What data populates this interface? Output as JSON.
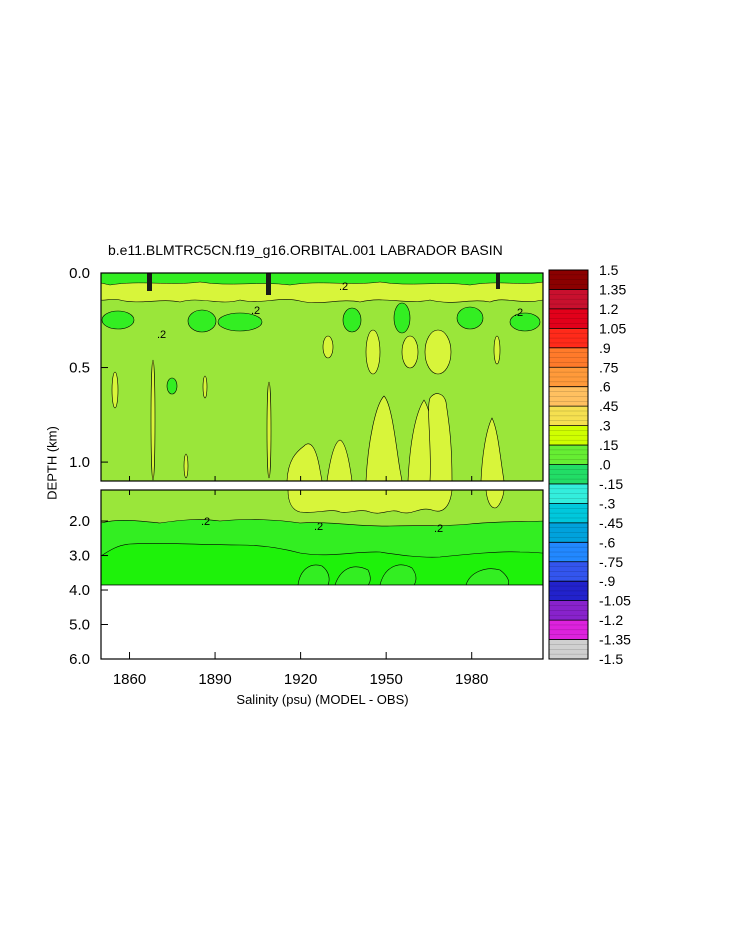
{
  "chart_data": {
    "type": "heatmap",
    "title": "b.e11.BLMTRC5CN.f19_g16.ORBITAL.001 LABRADOR BASIN",
    "xlabel": "Salinity (psu) (MODEL - OBS)",
    "ylabel": "DEPTH (km)",
    "x_range": [
      1850,
      2005
    ],
    "x_ticks": [
      1860,
      1890,
      1920,
      1950,
      1980
    ],
    "upper_panel": {
      "ylim": [
        0.0,
        1.1
      ],
      "y_ticks": [
        "0.0",
        "0.5",
        "1.0"
      ],
      "y_tick_values": [
        0.0,
        0.5,
        1.0
      ]
    },
    "lower_panel": {
      "ylim": [
        1.1,
        6.0
      ],
      "y_ticks": [
        "2.0",
        "3.0",
        "4.0",
        "5.0",
        "6.0"
      ],
      "y_tick_values": [
        2.0,
        3.0,
        4.0,
        5.0,
        6.0
      ],
      "seafloor_depth": 3.85
    },
    "contour_labels": [
      ".2",
      ".2",
      ".2",
      ".2",
      ".2",
      ".2",
      ".2"
    ],
    "colorbar": {
      "labels": [
        "1.5",
        "1.35",
        "1.2",
        "1.05",
        ".9",
        ".75",
        ".6",
        ".45",
        ".3",
        ".15",
        ".0",
        "-.15",
        "-.3",
        "-.45",
        "-.6",
        "-.75",
        "-.9",
        "-1.05",
        "-1.2",
        "-1.35",
        "-1.5"
      ],
      "colors": [
        "#8b0000",
        "#c8102e",
        "#e2001a",
        "#ff2a1a",
        "#ff7a2a",
        "#ff9a3a",
        "#ffc060",
        "#f5e050",
        "#cfff00",
        "#66ee33",
        "#22dd66",
        "#33eedd",
        "#00c8dc",
        "#00a2dc",
        "#2288ff",
        "#3355ee",
        "#2222cc",
        "#8822cc",
        "#dd22dd",
        "#d0d0d0",
        "#808080"
      ]
    },
    "field_colors": {
      "upper_mean": "#9ae63a",
      "positive_0_3": "#d8f53a",
      "near_zero": "#33ee22",
      "bottom_band": "#1ef20a",
      "surface_high": "#f5e050"
    }
  }
}
